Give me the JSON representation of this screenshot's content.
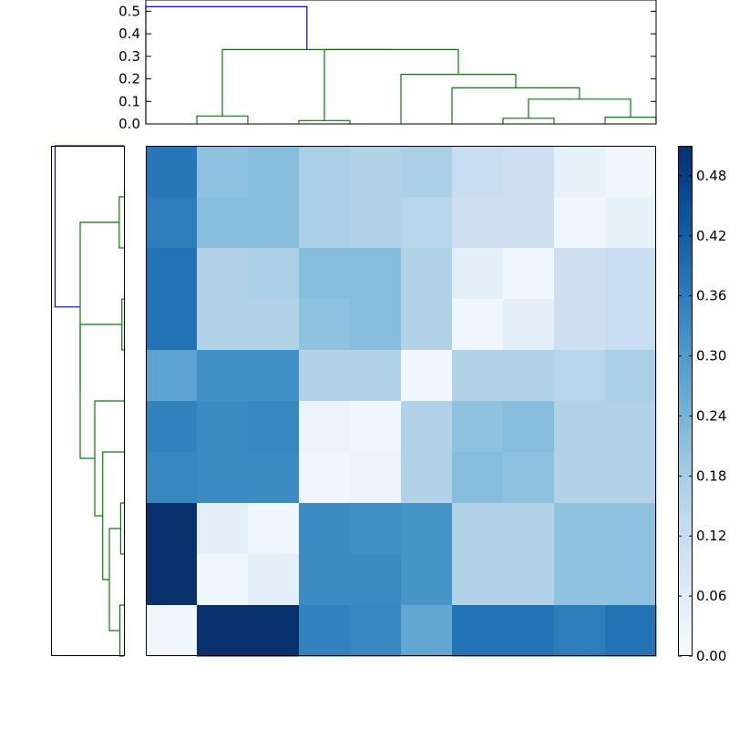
{
  "chart_data": [
    {
      "type": "dendrogram",
      "orientation": "top",
      "ylim": [
        0.0,
        0.55
      ],
      "yticks": [
        "0.0",
        "0.1",
        "0.2",
        "0.3",
        "0.4",
        "0.5"
      ],
      "yticks_values": [
        0.0,
        0.1,
        0.2,
        0.3,
        0.4,
        0.5
      ],
      "leaf_count": 10,
      "colors": {
        "above_threshold": "#0000ff",
        "cluster": "#008000"
      },
      "links": [
        {
          "i": [
            0.5,
            1.5
          ],
          "h": 0.035,
          "children_h": [
            0,
            0
          ],
          "color": "#008000"
        },
        {
          "i": [
            2.5,
            3.5
          ],
          "h": 0.015,
          "children_h": [
            0,
            0
          ],
          "color": "#008000"
        },
        {
          "i": [
            6.5,
            7.5
          ],
          "h": 0.025,
          "children_h": [
            0,
            0
          ],
          "color": "#008000"
        },
        {
          "i": [
            8.5,
            9.5
          ],
          "h": 0.03,
          "children_h": [
            0,
            0
          ],
          "color": "#008000"
        },
        {
          "i": [
            7.0,
            9.0
          ],
          "h": 0.11,
          "children_h": [
            0.025,
            0.03
          ],
          "color": "#008000"
        },
        {
          "i": [
            5.5,
            8.0
          ],
          "h": 0.16,
          "children_h": [
            0,
            0.11
          ],
          "color": "#008000"
        },
        {
          "i": [
            4.5,
            6.75
          ],
          "h": 0.22,
          "children_h": [
            0,
            0.16
          ],
          "color": "#008000"
        },
        {
          "i": [
            3.0,
            5.625
          ],
          "h": 0.33,
          "children_h": [
            0.015,
            0.22
          ],
          "color": "#008000"
        },
        {
          "i": [
            1.0,
            4.3125
          ],
          "h": 0.33,
          "children_h": [
            0.035,
            0.33
          ],
          "color": "#008000"
        },
        {
          "i": [
            -0.5,
            2.65625
          ],
          "h": 0.52,
          "children_h": [
            0,
            0.33
          ],
          "color": "#0000ff"
        }
      ]
    },
    {
      "type": "dendrogram",
      "orientation": "left",
      "ylim": [
        0.0,
        0.55
      ],
      "leaf_count": 10,
      "colors": {
        "above_threshold": "#0000ff",
        "cluster": "#008000"
      },
      "links": [
        {
          "i": [
            0.5,
            1.5
          ],
          "h": 0.035,
          "children_h": [
            0,
            0
          ],
          "color": "#008000"
        },
        {
          "i": [
            2.5,
            3.5
          ],
          "h": 0.015,
          "children_h": [
            0,
            0
          ],
          "color": "#008000"
        },
        {
          "i": [
            6.5,
            7.5
          ],
          "h": 0.025,
          "children_h": [
            0,
            0
          ],
          "color": "#008000"
        },
        {
          "i": [
            8.5,
            9.5
          ],
          "h": 0.03,
          "children_h": [
            0,
            0
          ],
          "color": "#008000"
        },
        {
          "i": [
            7.0,
            9.0
          ],
          "h": 0.11,
          "children_h": [
            0.025,
            0.03
          ],
          "color": "#008000"
        },
        {
          "i": [
            5.5,
            8.0
          ],
          "h": 0.16,
          "children_h": [
            0,
            0.11
          ],
          "color": "#008000"
        },
        {
          "i": [
            4.5,
            6.75
          ],
          "h": 0.22,
          "children_h": [
            0,
            0.16
          ],
          "color": "#008000"
        },
        {
          "i": [
            3.0,
            5.625
          ],
          "h": 0.33,
          "children_h": [
            0.015,
            0.22
          ],
          "color": "#008000"
        },
        {
          "i": [
            1.0,
            4.3125
          ],
          "h": 0.33,
          "children_h": [
            0.035,
            0.33
          ],
          "color": "#008000"
        },
        {
          "i": [
            -0.5,
            2.65625
          ],
          "h": 0.52,
          "children_h": [
            0,
            0.33
          ],
          "color": "#0000ff"
        }
      ]
    },
    {
      "type": "heatmap",
      "colormap": "Blues",
      "vmin": 0.0,
      "vmax": 0.51,
      "values": [
        [
          0.37,
          0.21,
          0.22,
          0.17,
          0.16,
          0.17,
          0.12,
          0.11,
          0.04,
          0.02
        ],
        [
          0.36,
          0.22,
          0.22,
          0.17,
          0.16,
          0.15,
          0.11,
          0.11,
          0.02,
          0.04
        ],
        [
          0.38,
          0.16,
          0.17,
          0.22,
          0.22,
          0.16,
          0.05,
          0.02,
          0.11,
          0.12
        ],
        [
          0.38,
          0.16,
          0.16,
          0.21,
          0.22,
          0.16,
          0.02,
          0.05,
          0.11,
          0.12
        ],
        [
          0.28,
          0.32,
          0.32,
          0.16,
          0.16,
          0.02,
          0.16,
          0.16,
          0.15,
          0.17
        ],
        [
          0.35,
          0.33,
          0.34,
          0.03,
          0.02,
          0.16,
          0.21,
          0.22,
          0.16,
          0.16
        ],
        [
          0.34,
          0.33,
          0.33,
          0.02,
          0.03,
          0.16,
          0.22,
          0.21,
          0.16,
          0.16
        ],
        [
          0.51,
          0.05,
          0.02,
          0.33,
          0.32,
          0.31,
          0.16,
          0.16,
          0.21,
          0.21
        ],
        [
          0.51,
          0.02,
          0.05,
          0.33,
          0.33,
          0.31,
          0.16,
          0.16,
          0.21,
          0.21
        ],
        [
          0.02,
          0.51,
          0.51,
          0.35,
          0.34,
          0.27,
          0.38,
          0.38,
          0.36,
          0.38
        ]
      ]
    },
    {
      "type": "colorbar",
      "colormap": "Blues",
      "vmin": 0.0,
      "vmax": 0.51,
      "ticks": [
        "0.00",
        "0.06",
        "0.12",
        "0.18",
        "0.24",
        "0.30",
        "0.36",
        "0.42",
        "0.48"
      ],
      "tick_values": [
        0.0,
        0.06,
        0.12,
        0.18,
        0.24,
        0.3,
        0.36,
        0.42,
        0.48
      ]
    }
  ]
}
